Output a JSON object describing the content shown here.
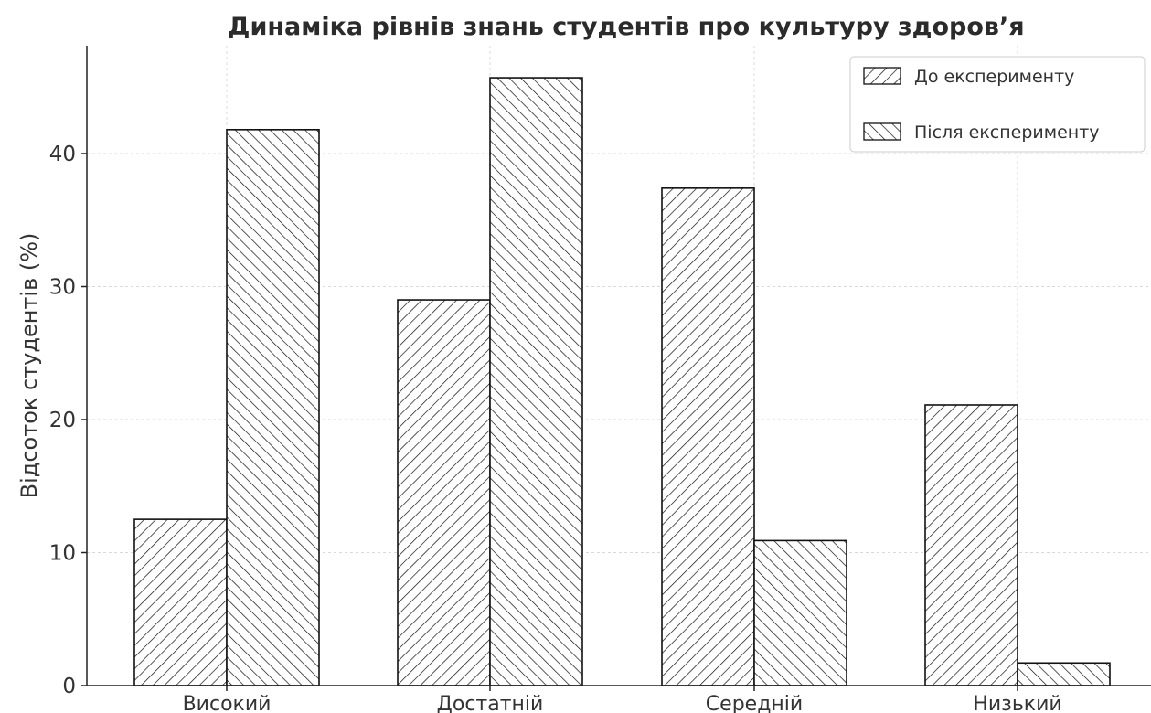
{
  "chart_data": {
    "type": "bar",
    "title": "Динаміка рівнів знань студентів про культуру здоров’я",
    "xlabel": "",
    "ylabel": "Відсоток студентів (%)",
    "categories": [
      "Високий",
      "Достатній",
      "Середній",
      "Низький"
    ],
    "series": [
      {
        "name": "До експерименту",
        "values": [
          12.5,
          29.0,
          37.4,
          21.1
        ],
        "hatch": "forward-diagonal"
      },
      {
        "name": "Після експерименту",
        "values": [
          41.8,
          45.7,
          10.9,
          1.7
        ],
        "hatch": "backward-diagonal"
      }
    ],
    "yticks": [
      0,
      10,
      20,
      30,
      40
    ],
    "ylim": [
      0,
      48
    ],
    "grid": true,
    "legend_position": "top-right",
    "colors": {
      "bar_fill": "#ffffff",
      "bar_edge": "#111111",
      "hatch": "#111111",
      "grid": "#d9d9d9"
    }
  }
}
